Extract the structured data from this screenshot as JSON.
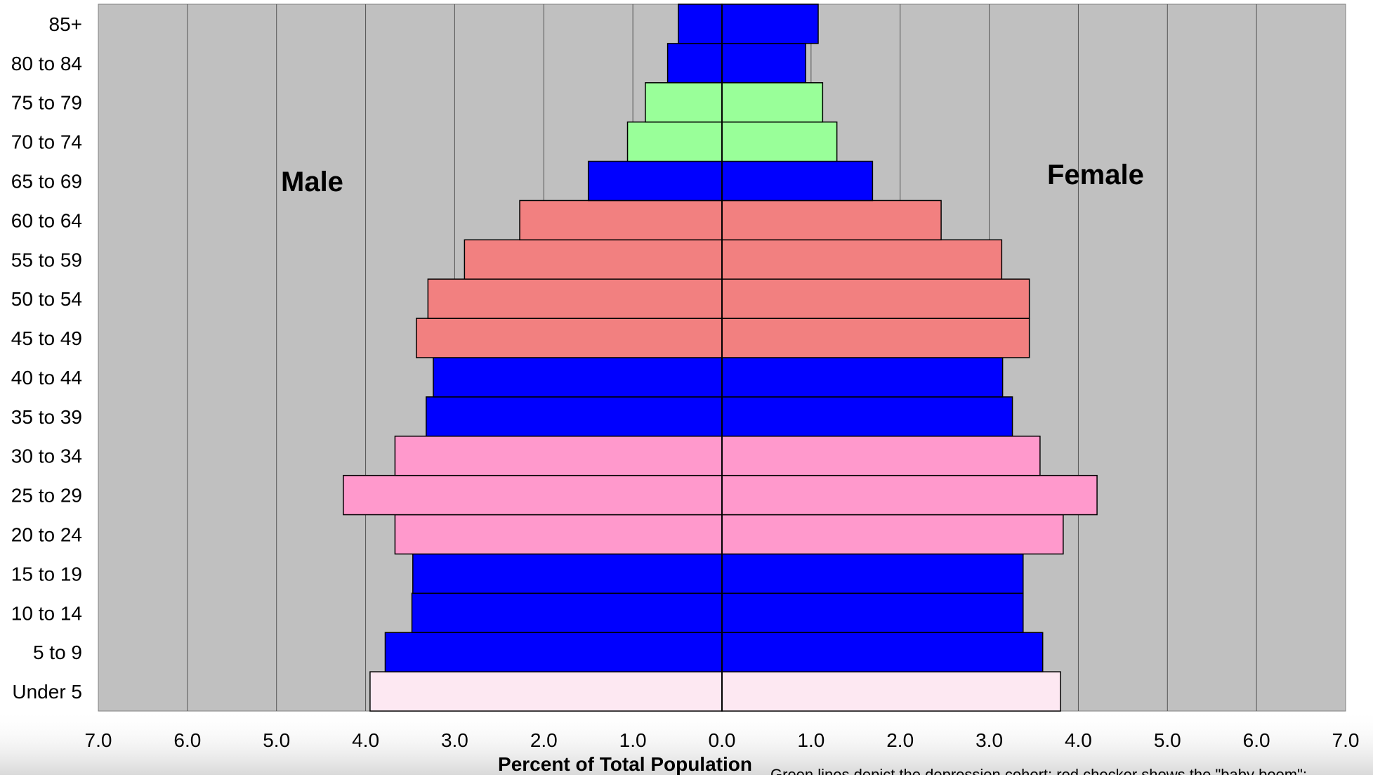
{
  "chart_data": {
    "type": "bar",
    "orientation": "horizontal-population-pyramid",
    "xlabel": "Percent of Total Population",
    "left_label": "Male",
    "right_label": "Female",
    "xlim": [
      -7,
      7
    ],
    "x_ticks": [
      -7,
      -6,
      -5,
      -4,
      -3,
      -2,
      -1,
      0,
      1,
      2,
      3,
      4,
      5,
      6,
      7
    ],
    "x_tick_labels": [
      "7.0",
      "6.0",
      "5.0",
      "4.0",
      "3.0",
      "2.0",
      "1.0",
      "0.0",
      "1.0",
      "2.0",
      "3.0",
      "4.0",
      "5.0",
      "6.0",
      "7.0"
    ],
    "grid": true,
    "plot_background": "#c0c0c0",
    "categories": [
      "Under 5",
      "5 to 9",
      "10 to 14",
      "15 to 19",
      "20 to 24",
      "25 to 29",
      "30 to 34",
      "35 to 39",
      "40 to 44",
      "45 to 49",
      "50 to 54",
      "55 to 59",
      "60 to 64",
      "65 to 69",
      "70 to 74",
      "75 to 79",
      "80 to 84",
      "85+"
    ],
    "series": [
      {
        "name": "Male",
        "values": [
          3.95,
          3.78,
          3.48,
          3.47,
          3.67,
          4.25,
          3.67,
          3.32,
          3.24,
          3.43,
          3.3,
          2.89,
          2.27,
          1.5,
          1.06,
          0.86,
          0.61,
          0.49
        ]
      },
      {
        "name": "Female",
        "values": [
          3.8,
          3.6,
          3.38,
          3.38,
          3.83,
          4.21,
          3.57,
          3.26,
          3.15,
          3.45,
          3.45,
          3.14,
          2.46,
          1.69,
          1.29,
          1.13,
          0.94,
          1.08
        ]
      }
    ],
    "bar_colors": [
      "#fde8f2",
      "#0000ff",
      "#0000ff",
      "#0000ff",
      "#ff99cc",
      "#ff99cc",
      "#ff99cc",
      "#0000ff",
      "#0000ff",
      "#f28080",
      "#f28080",
      "#f28080",
      "#f28080",
      "#0000ff",
      "#99ff99",
      "#99ff99",
      "#0000ff",
      "#0000ff"
    ],
    "footnote": "Green lines depict the depression cohort; red checker shows the \"baby boom\";"
  }
}
